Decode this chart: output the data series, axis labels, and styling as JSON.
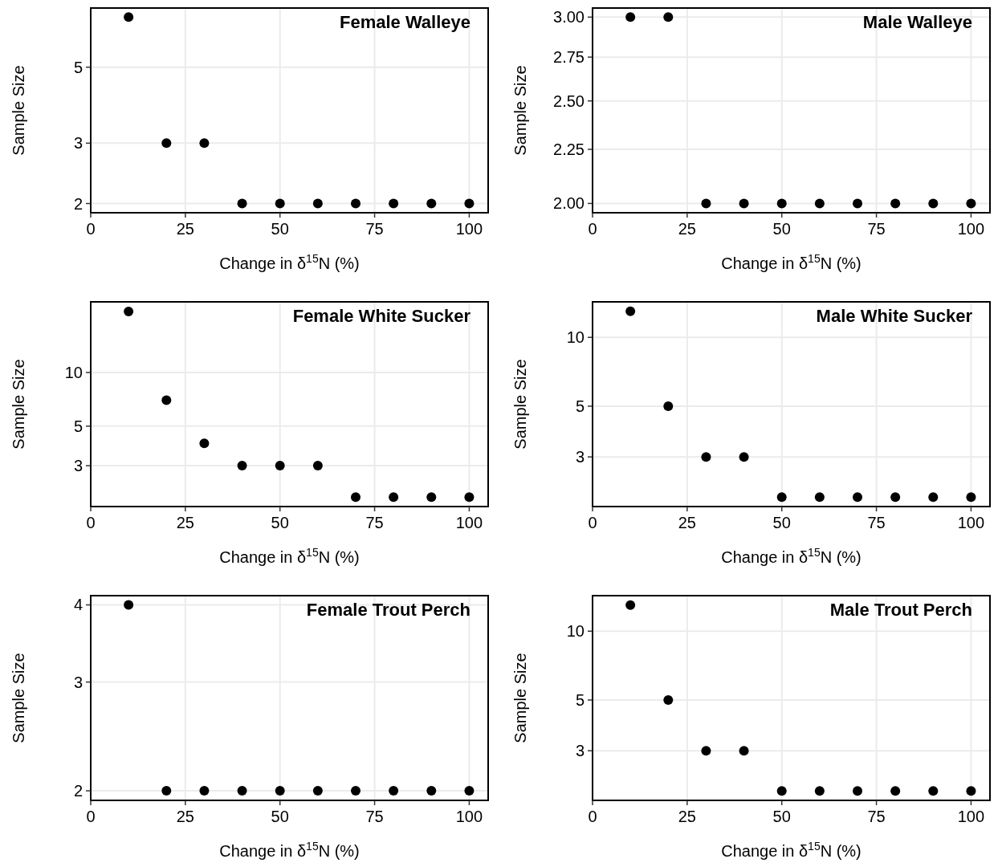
{
  "chart_data": [
    {
      "type": "scatter",
      "title": "Female Walleye",
      "xlabel": "Change in δ$^{15}$N (%)",
      "ylabel": "Sample Size",
      "x": [
        10,
        20,
        30,
        40,
        50,
        60,
        70,
        80,
        90,
        100
      ],
      "values": [
        7,
        3,
        3,
        2,
        2,
        2,
        2,
        2,
        2,
        2
      ],
      "color": "#000000",
      "marker": "circle",
      "xlim": [
        0,
        105
      ],
      "xticks": [
        0,
        25,
        50,
        75,
        100
      ],
      "ylim": [
        1.88,
        7.44
      ],
      "yticks": [
        2,
        3,
        5
      ],
      "log": "y",
      "grid": true
    },
    {
      "type": "scatter",
      "title": "Male Walleye",
      "xlabel": "Change in δ$^{15}$N (%)",
      "ylabel": "Sample Size",
      "x": [
        10,
        20,
        30,
        40,
        50,
        60,
        70,
        80,
        90,
        100
      ],
      "values": [
        3,
        3,
        2,
        2,
        2,
        2,
        2,
        2,
        2,
        2
      ],
      "color": "#000000",
      "marker": "circle",
      "xlim": [
        0,
        105
      ],
      "xticks": [
        0,
        25,
        50,
        75,
        100
      ],
      "ylim": [
        1.96,
        3.06
      ],
      "yticks": [
        {
          "value": 2,
          "label": "2.00"
        },
        {
          "value": 2.25,
          "label": "2.25"
        },
        {
          "value": 2.5,
          "label": "2.50"
        },
        {
          "value": 2.75,
          "label": "2.75"
        },
        {
          "value": 3,
          "label": "3.00"
        }
      ],
      "log": "y",
      "grid": true
    },
    {
      "type": "scatter",
      "title": "Female White Sucker",
      "xlabel": "Change in δ$^{15}$N (%)",
      "ylabel": "Sample Size",
      "x": [
        10,
        20,
        30,
        40,
        50,
        60,
        70,
        80,
        90,
        100
      ],
      "values": [
        22,
        7,
        4,
        3,
        3,
        3,
        2,
        2,
        2,
        2
      ],
      "color": "#000000",
      "marker": "circle",
      "xlim": [
        0,
        105
      ],
      "xticks": [
        0,
        25,
        50,
        75,
        100
      ],
      "ylim": [
        1.77,
        24.9
      ],
      "yticks": [
        3,
        5,
        10
      ],
      "log": "y",
      "grid": true
    },
    {
      "type": "scatter",
      "title": "Male White Sucker",
      "xlabel": "Change in δ$^{15}$N (%)",
      "ylabel": "Sample Size",
      "x": [
        10,
        20,
        30,
        40,
        50,
        60,
        70,
        80,
        90,
        100
      ],
      "values": [
        13,
        5,
        3,
        3,
        2,
        2,
        2,
        2,
        2,
        2
      ],
      "color": "#000000",
      "marker": "circle",
      "xlim": [
        0,
        105
      ],
      "xticks": [
        0,
        25,
        50,
        75,
        100
      ],
      "ylim": [
        1.82,
        14.3
      ],
      "yticks": [
        3,
        5,
        10
      ],
      "log": "y",
      "grid": true
    },
    {
      "type": "scatter",
      "title": "Female Trout Perch",
      "xlabel": "Change in δ$^{15}$N (%)",
      "ylabel": "Sample Size",
      "x": [
        10,
        20,
        30,
        40,
        50,
        60,
        70,
        80,
        90,
        100
      ],
      "values": [
        4,
        2,
        2,
        2,
        2,
        2,
        2,
        2,
        2,
        2
      ],
      "color": "#000000",
      "marker": "circle",
      "xlim": [
        0,
        105
      ],
      "xticks": [
        0,
        25,
        50,
        75,
        100
      ],
      "ylim": [
        1.93,
        4.14
      ],
      "yticks": [
        2,
        3,
        4
      ],
      "log": "y",
      "grid": true
    },
    {
      "type": "scatter",
      "title": "Male Trout Perch",
      "xlabel": "Change in δ$^{15}$N (%)",
      "ylabel": "Sample Size",
      "x": [
        10,
        20,
        30,
        40,
        50,
        60,
        70,
        80,
        90,
        100
      ],
      "values": [
        13,
        5,
        3,
        3,
        2,
        2,
        2,
        2,
        2,
        2
      ],
      "color": "#000000",
      "marker": "circle",
      "xlim": [
        0,
        105
      ],
      "xticks": [
        0,
        25,
        50,
        75,
        100
      ],
      "ylim": [
        1.82,
        14.3
      ],
      "yticks": [
        3,
        5,
        10
      ],
      "log": "y",
      "grid": true
    }
  ]
}
